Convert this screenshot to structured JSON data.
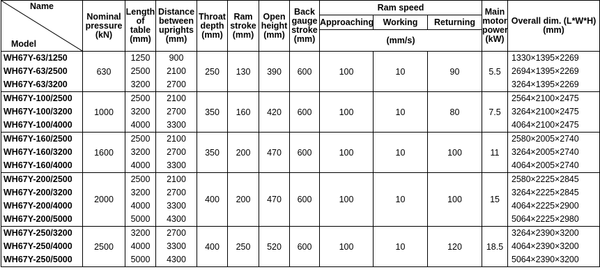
{
  "headers": {
    "name": "Name",
    "model": "Model",
    "nominal_pressure": "Nominal pressure (kN)",
    "length_of_table": "Length of table (mm)",
    "distance_between_uprights": "Distance between uprights (mm)",
    "throat_depth": "Throat depth (mm)",
    "ram_stroke": "Ram stroke (mm)",
    "open_height": "Open height (mm)",
    "back_gauge_stroke": "Back gauge stroke (mm)",
    "ram_speed": "Ram speed",
    "approaching": "Approaching",
    "working": "Working",
    "returning": "Returning",
    "ram_speed_unit": "(mm/s)",
    "main_motor_power": "Main motor power (kW)",
    "overall_dim": "Overall dim. (L*W*H) (mm)"
  },
  "groups": [
    {
      "models": [
        "WH67Y-63/1250",
        "WH67Y-63/2500",
        "WH67Y-63/3200"
      ],
      "nominal_pressure": "630",
      "lengths": [
        "1250",
        "2500",
        "3200"
      ],
      "distances": [
        "900",
        "2100",
        "2700"
      ],
      "throat_depth": "250",
      "ram_stroke": "130",
      "open_height": "390",
      "back_gauge_stroke": "600",
      "approaching": "100",
      "working": "10",
      "returning": "90",
      "power": "5.5",
      "dims": [
        "1330×1395×2269",
        "2694×1395×2269",
        "3264×1395×2269"
      ]
    },
    {
      "models": [
        "WH67Y-100/2500",
        "WH67Y-100/3200",
        "WH67Y-100/4000"
      ],
      "nominal_pressure": "1000",
      "lengths": [
        "2500",
        "3200",
        "4000"
      ],
      "distances": [
        "2100",
        "2700",
        "3300"
      ],
      "throat_depth": "350",
      "ram_stroke": "160",
      "open_height": "420",
      "back_gauge_stroke": "600",
      "approaching": "100",
      "working": "10",
      "returning": "80",
      "power": "7.5",
      "dims": [
        "2564×2100×2475",
        "3264×2100×2475",
        "4064×2100×2475"
      ]
    },
    {
      "models": [
        "WH67Y-160/2500",
        "WH67Y-160/3200",
        "WH67Y-160/4000"
      ],
      "nominal_pressure": "1600",
      "lengths": [
        "2500",
        "3200",
        "4000"
      ],
      "distances": [
        "2100",
        "2700",
        "3300"
      ],
      "throat_depth": "350",
      "ram_stroke": "200",
      "open_height": "470",
      "back_gauge_stroke": "600",
      "approaching": "100",
      "working": "10",
      "returning": "100",
      "power": "11",
      "dims": [
        "2580×2005×2740",
        "3264×2005×2740",
        "4064×2005×2740"
      ]
    },
    {
      "models": [
        "WH67Y-200/2500",
        "WH67Y-200/3200",
        "WH67Y-200/4000",
        "WH67Y-200/5000"
      ],
      "nominal_pressure": "2000",
      "lengths": [
        "2500",
        "3200",
        "4000",
        "5000"
      ],
      "distances": [
        "2100",
        "2700",
        "3300",
        "4300"
      ],
      "throat_depth": "400",
      "ram_stroke": "200",
      "open_height": "470",
      "back_gauge_stroke": "600",
      "approaching": "100",
      "working": "10",
      "returning": "100",
      "power": "15",
      "dims": [
        "2580×2225×2845",
        "3264×2225×2845",
        "4064×2225×2900",
        "5064×2225×2980"
      ]
    },
    {
      "models": [
        "WH67Y-250/3200",
        "WH67Y-250/4000",
        "WH67Y-250/5000"
      ],
      "nominal_pressure": "2500",
      "lengths": [
        "3200",
        "4000",
        "5000"
      ],
      "distances": [
        "2700",
        "3300",
        "4300"
      ],
      "throat_depth": "400",
      "ram_stroke": "250",
      "open_height": "520",
      "back_gauge_stroke": "600",
      "approaching": "100",
      "working": "10",
      "returning": "120",
      "power": "18.5",
      "dims": [
        "3264×2390×3200",
        "4064×2390×3200",
        "5064×2390×3200"
      ]
    }
  ]
}
